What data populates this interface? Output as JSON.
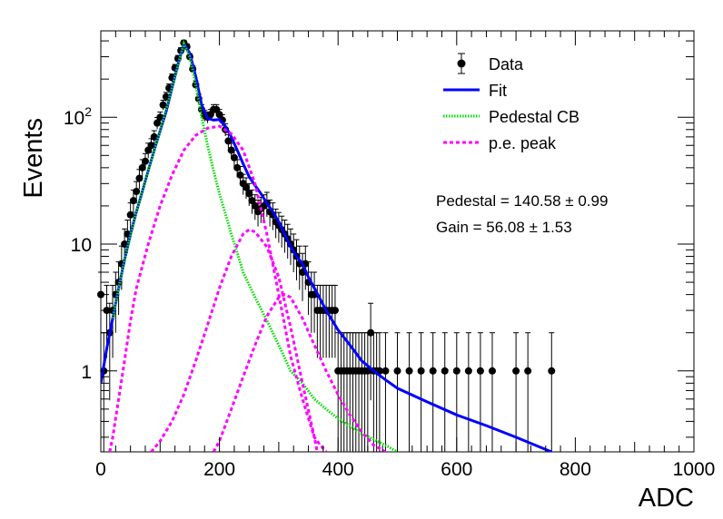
{
  "chart_data": {
    "type": "scatter",
    "title": "",
    "xlabel": "ADC",
    "ylabel": "Events",
    "xlim": [
      0,
      1000
    ],
    "ylim": [
      0.23,
      480
    ],
    "yscale": "log",
    "x_ticks": [
      {
        "value": 0,
        "label": "0"
      },
      {
        "value": 200,
        "label": "200"
      },
      {
        "value": 400,
        "label": "400"
      },
      {
        "value": 600,
        "label": "600"
      },
      {
        "value": 800,
        "label": "800"
      },
      {
        "value": 1000,
        "label": "1000"
      }
    ],
    "y_ticks": [
      {
        "value": 1,
        "label": "1",
        "sup": ""
      },
      {
        "value": 10,
        "label": "10",
        "sup": ""
      },
      {
        "value": 100,
        "label": "10",
        "sup": "2"
      }
    ],
    "grid": false,
    "legend_position": "top-right",
    "legend": [
      {
        "label": "Data",
        "style": "marker",
        "color": "#000000"
      },
      {
        "label": "Fit",
        "style": "solid",
        "color": "#0000ff"
      },
      {
        "label": "Pedestal CB",
        "style": "dotted",
        "color": "#00dd00"
      },
      {
        "label": "p.e. peak",
        "style": "dashed",
        "color": "#ff00ff"
      }
    ],
    "annotations": [
      {
        "label": "Pedestal = 140.58",
        "pm": "0.99"
      },
      {
        "label": "Gain = 56.08",
        "pm": "1.53"
      }
    ],
    "data_points": [
      [
        0,
        4
      ],
      [
        5,
        1
      ],
      [
        10,
        3
      ],
      [
        15,
        2
      ],
      [
        20,
        3
      ],
      [
        25,
        4
      ],
      [
        30,
        5
      ],
      [
        35,
        7
      ],
      [
        40,
        10
      ],
      [
        45,
        12
      ],
      [
        50,
        17
      ],
      [
        55,
        22
      ],
      [
        60,
        26
      ],
      [
        65,
        33
      ],
      [
        70,
        40
      ],
      [
        75,
        45
      ],
      [
        80,
        55
      ],
      [
        85,
        60
      ],
      [
        90,
        70
      ],
      [
        95,
        90
      ],
      [
        100,
        100
      ],
      [
        105,
        125
      ],
      [
        110,
        145
      ],
      [
        115,
        170
      ],
      [
        120,
        205
      ],
      [
        125,
        245
      ],
      [
        130,
        290
      ],
      [
        135,
        335
      ],
      [
        140,
        385
      ],
      [
        145,
        360
      ],
      [
        150,
        300
      ],
      [
        155,
        240
      ],
      [
        160,
        180
      ],
      [
        165,
        140
      ],
      [
        170,
        115
      ],
      [
        175,
        103
      ],
      [
        180,
        100
      ],
      [
        185,
        105
      ],
      [
        190,
        115
      ],
      [
        195,
        115
      ],
      [
        200,
        105
      ],
      [
        205,
        95
      ],
      [
        210,
        80
      ],
      [
        215,
        65
      ],
      [
        220,
        55
      ],
      [
        225,
        48
      ],
      [
        230,
        40
      ],
      [
        235,
        35
      ],
      [
        240,
        30
      ],
      [
        245,
        28
      ],
      [
        250,
        25
      ],
      [
        255,
        22
      ],
      [
        260,
        20
      ],
      [
        265,
        18
      ],
      [
        270,
        19
      ],
      [
        275,
        20
      ],
      [
        280,
        21
      ],
      [
        285,
        18
      ],
      [
        290,
        17
      ],
      [
        295,
        15
      ],
      [
        300,
        14
      ],
      [
        305,
        13
      ],
      [
        310,
        12
      ],
      [
        315,
        11
      ],
      [
        320,
        10
      ],
      [
        325,
        9
      ],
      [
        330,
        8
      ],
      [
        335,
        7
      ],
      [
        340,
        6
      ],
      [
        345,
        7
      ],
      [
        350,
        5
      ],
      [
        355,
        4
      ],
      [
        360,
        4
      ],
      [
        365,
        3
      ],
      [
        370,
        3
      ],
      [
        375,
        3
      ],
      [
        380,
        3
      ],
      [
        385,
        3
      ],
      [
        390,
        3
      ],
      [
        395,
        3
      ],
      [
        400,
        1
      ],
      [
        405,
        1
      ],
      [
        410,
        1
      ],
      [
        415,
        1
      ],
      [
        420,
        1
      ],
      [
        425,
        1
      ],
      [
        430,
        1
      ],
      [
        435,
        1
      ],
      [
        440,
        1
      ],
      [
        445,
        1
      ],
      [
        450,
        1
      ],
      [
        455,
        2
      ],
      [
        460,
        1
      ],
      [
        465,
        1
      ],
      [
        470,
        1
      ],
      [
        480,
        1
      ],
      [
        500,
        1
      ],
      [
        520,
        1
      ],
      [
        540,
        1
      ],
      [
        560,
        1
      ],
      [
        580,
        1
      ],
      [
        600,
        1
      ],
      [
        620,
        1
      ],
      [
        640,
        1
      ],
      [
        660,
        1
      ],
      [
        700,
        1
      ],
      [
        720,
        1
      ],
      [
        760,
        1
      ]
    ],
    "series": [
      {
        "name": "Fit",
        "color": "#0000ff",
        "x": [
          0,
          10,
          20,
          30,
          40,
          50,
          60,
          70,
          80,
          90,
          100,
          110,
          120,
          130,
          140,
          150,
          160,
          170,
          180,
          190,
          200,
          210,
          220,
          230,
          240,
          250,
          260,
          270,
          280,
          290,
          300,
          310,
          320,
          330,
          340,
          350,
          360,
          380,
          400,
          420,
          440,
          460,
          480,
          500,
          550,
          600,
          650,
          700,
          750,
          760
        ],
        "y": [
          0.8,
          1.5,
          2.6,
          4.5,
          7.5,
          12,
          18,
          26,
          38,
          55,
          78,
          110,
          170,
          260,
          380,
          320,
          210,
          125,
          98,
          95,
          96,
          85,
          70,
          55,
          43,
          34,
          29,
          25,
          21,
          18,
          15,
          12,
          9.5,
          8,
          7,
          5.5,
          4.5,
          3,
          2.1,
          1.6,
          1.2,
          1.0,
          0.85,
          0.73,
          0.57,
          0.45,
          0.37,
          0.3,
          0.24,
          0.23
        ]
      },
      {
        "name": "Pedestal CB",
        "color": "#00dd00",
        "x": [
          20,
          40,
          60,
          80,
          100,
          120,
          140,
          150,
          160,
          170,
          180,
          190,
          200,
          220,
          240,
          260,
          280,
          300,
          320,
          340,
          360,
          380,
          400,
          440,
          480,
          500
        ],
        "y": [
          2.6,
          7.5,
          18,
          38,
          78,
          170,
          380,
          300,
          180,
          100,
          60,
          38,
          25,
          12,
          6,
          3.8,
          2.5,
          1.6,
          1.0,
          0.8,
          0.6,
          0.5,
          0.42,
          0.32,
          0.26,
          0.23
        ]
      },
      {
        "name": "p.e. peak 1",
        "color": "#ff00ff",
        "x": [
          15,
          20,
          30,
          40,
          50,
          60,
          80,
          100,
          120,
          140,
          160,
          180,
          200,
          220,
          240,
          260,
          280,
          300,
          320,
          340,
          360,
          370,
          380
        ],
        "y": [
          0.23,
          0.3,
          0.6,
          1.2,
          2.5,
          4.5,
          10,
          20,
          35,
          55,
          72,
          82,
          85,
          74,
          55,
          30,
          12,
          4,
          1.3,
          0.6,
          0.3,
          0.26,
          0.23
        ]
      },
      {
        "name": "p.e. peak 2",
        "color": "#ff00ff",
        "x": [
          85,
          100,
          120,
          140,
          160,
          180,
          200,
          220,
          240,
          250,
          260,
          280,
          300,
          320,
          340,
          360,
          365
        ],
        "y": [
          0.23,
          0.28,
          0.4,
          0.65,
          1.2,
          2.3,
          4.5,
          8,
          12,
          13,
          12.5,
          9.5,
          5.5,
          2.2,
          0.8,
          0.3,
          0.23
        ]
      },
      {
        "name": "p.e. peak 3",
        "color": "#ff00ff",
        "x": [
          190,
          200,
          220,
          240,
          260,
          280,
          300,
          310,
          320,
          340,
          360,
          380,
          400,
          420,
          440,
          460,
          480
        ],
        "y": [
          0.23,
          0.28,
          0.5,
          0.9,
          1.6,
          2.7,
          3.8,
          4,
          3.8,
          2.6,
          1.6,
          1.0,
          0.65,
          0.45,
          0.33,
          0.26,
          0.23
        ]
      }
    ]
  }
}
